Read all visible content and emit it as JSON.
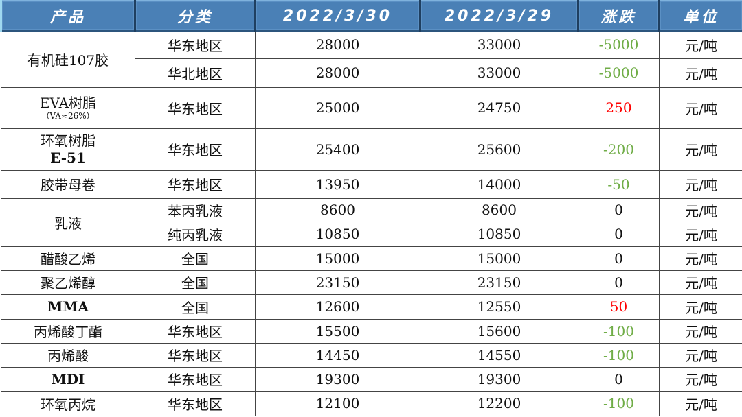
{
  "header": [
    "产品",
    "分类",
    "2022/3/30",
    "2022/3/29",
    "涨跌",
    "单位"
  ],
  "colors": {
    "header_bg": "#4a80b6",
    "down": "#70ad47",
    "up": "#ff0000"
  },
  "rows": [
    {
      "product": "有机硅107胶",
      "region": "华东地区",
      "d1": "28000",
      "d2": "33000",
      "change": "-5000",
      "unit": "元/吨"
    },
    {
      "region": "华北地区",
      "d1": "28000",
      "d2": "33000",
      "change": "-5000",
      "unit": "元/吨"
    },
    {
      "product": "EVA树脂",
      "product_sub": "（VA≈26%）",
      "region": "华东地区",
      "d1": "25000",
      "d2": "24750",
      "change": "250",
      "unit": "元/吨"
    },
    {
      "product": "环氧树脂",
      "product_sub": "E-51",
      "region": "华东地区",
      "d1": "25400",
      "d2": "25600",
      "change": "-200",
      "unit": "元/吨"
    },
    {
      "product": "胶带母卷",
      "region": "华东地区",
      "d1": "13950",
      "d2": "14000",
      "change": "-50",
      "unit": "元/吨"
    },
    {
      "product": "乳液",
      "region": "苯丙乳液",
      "d1": "8600",
      "d2": "8600",
      "change": "0",
      "unit": "元/吨"
    },
    {
      "region": "纯丙乳液",
      "d1": "10850",
      "d2": "10850",
      "change": "0",
      "unit": "元/吨"
    },
    {
      "product": "醋酸乙烯",
      "region": "全国",
      "d1": "15000",
      "d2": "15000",
      "change": "0",
      "unit": "元/吨"
    },
    {
      "product": "聚乙烯醇",
      "region": "全国",
      "d1": "23150",
      "d2": "23150",
      "change": "0",
      "unit": "元/吨"
    },
    {
      "product": "MMA",
      "region": "全国",
      "d1": "12600",
      "d2": "12550",
      "change": "50",
      "unit": "元/吨"
    },
    {
      "product": "丙烯酸丁酯",
      "region": "华东地区",
      "d1": "15500",
      "d2": "15600",
      "change": "-100",
      "unit": "元/吨"
    },
    {
      "product": "丙烯酸",
      "region": "华东地区",
      "d1": "14450",
      "d2": "14550",
      "change": "-100",
      "unit": "元/吨"
    },
    {
      "product": "MDI",
      "region": "华东地区",
      "d1": "19300",
      "d2": "19300",
      "change": "0",
      "unit": "元/吨"
    },
    {
      "product": "环氧丙烷",
      "region": "华东地区",
      "d1": "12100",
      "d2": "12200",
      "change": "-100",
      "unit": "元/吨"
    }
  ]
}
